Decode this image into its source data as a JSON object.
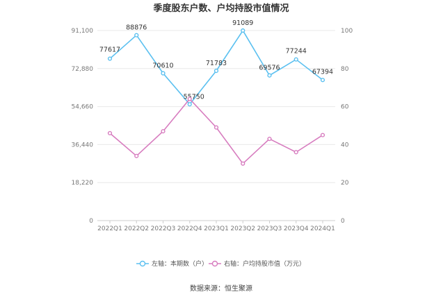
{
  "chart_data": {
    "type": "line",
    "title": "季度股东户数、户均持股市值情况",
    "categories": [
      "2022Q1",
      "2022Q2",
      "2022Q3",
      "2022Q4",
      "2023Q1",
      "2023Q2",
      "2023Q3",
      "2023Q4",
      "2024Q1"
    ],
    "series": [
      {
        "name": "左轴：本期数（户）",
        "axis": "left",
        "color": "#5bc0f0",
        "values": [
          77617,
          88876,
          70610,
          55750,
          71783,
          91089,
          69576,
          77244,
          67394
        ],
        "labels": [
          "77617",
          "88876",
          "70610",
          "55750",
          "71783",
          "91089",
          "69576",
          "77244",
          "67394"
        ]
      },
      {
        "name": "右轴：户均持股市值（万元）",
        "axis": "right",
        "color": "#d77cbf",
        "values": [
          46,
          34,
          47,
          64,
          49,
          30,
          43,
          36,
          45
        ]
      }
    ],
    "left_axis": {
      "ylim": [
        0,
        91100
      ],
      "ticks": [
        0,
        18220,
        36440,
        54660,
        72880,
        91100
      ],
      "tick_labels": [
        "0",
        "18,220",
        "36,440",
        "54,660",
        "72,880",
        "91,100"
      ]
    },
    "right_axis": {
      "ylim": [
        0,
        100
      ],
      "ticks": [
        0,
        20,
        40,
        60,
        80,
        100
      ],
      "tick_labels": [
        "0",
        "20",
        "40",
        "60",
        "80",
        "100"
      ]
    },
    "grid": true,
    "legend_position": "bottom"
  },
  "footer": {
    "source": "数据来源：恒生聚源"
  }
}
